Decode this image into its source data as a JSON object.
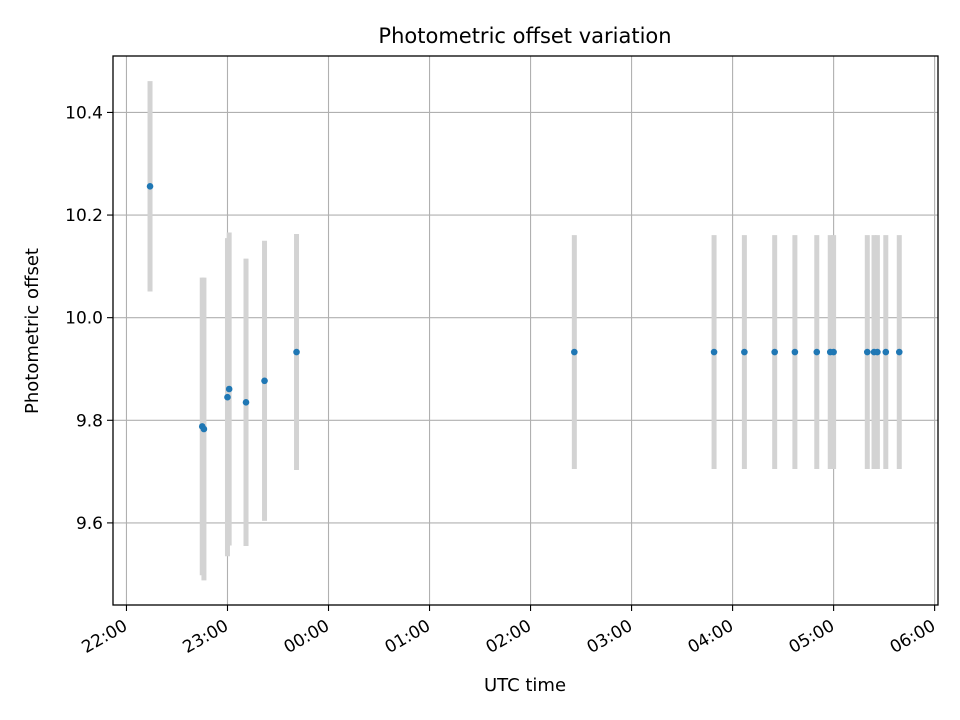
{
  "chart_data": {
    "type": "scatter",
    "title": "Photometric offset variation",
    "xlabel": "UTC time",
    "ylabel": "Photometric offset",
    "x_ticks": [
      "22:00",
      "23:00",
      "00:00",
      "01:00",
      "02:00",
      "03:00",
      "04:00",
      "05:00",
      "06:00"
    ],
    "y_ticks": [
      "9.6",
      "9.8",
      "10.0",
      "10.2",
      "10.4"
    ],
    "xlim": [
      "21:52",
      "06:00"
    ],
    "ylim": [
      9.44,
      10.51
    ],
    "grid": true,
    "point_color": "#1f77b4",
    "errorbar_color": "#d3d3d3",
    "points": [
      {
        "t": "22:14",
        "y": 10.256,
        "err": 0.205
      },
      {
        "t": "22:45",
        "y": 9.788,
        "err": 0.29
      },
      {
        "t": "22:46",
        "y": 9.783,
        "err": 0.295
      },
      {
        "t": "23:00",
        "y": 9.845,
        "err": 0.31
      },
      {
        "t": "23:01",
        "y": 9.861,
        "err": 0.305
      },
      {
        "t": "23:11",
        "y": 9.835,
        "err": 0.28
      },
      {
        "t": "23:22",
        "y": 9.877,
        "err": 0.273
      },
      {
        "t": "23:41",
        "y": 9.933,
        "err": 0.23
      },
      {
        "t": "02:26",
        "y": 9.933,
        "err": 0.228
      },
      {
        "t": "03:49",
        "y": 9.933,
        "err": 0.228
      },
      {
        "t": "04:07",
        "y": 9.933,
        "err": 0.228
      },
      {
        "t": "04:25",
        "y": 9.933,
        "err": 0.228
      },
      {
        "t": "04:37",
        "y": 9.933,
        "err": 0.228
      },
      {
        "t": "04:50",
        "y": 9.933,
        "err": 0.228
      },
      {
        "t": "04:58",
        "y": 9.933,
        "err": 0.228
      },
      {
        "t": "05:00",
        "y": 9.933,
        "err": 0.228
      },
      {
        "t": "05:20",
        "y": 9.933,
        "err": 0.228
      },
      {
        "t": "05:24",
        "y": 9.933,
        "err": 0.228
      },
      {
        "t": "05:26",
        "y": 9.933,
        "err": 0.228
      },
      {
        "t": "05:31",
        "y": 9.933,
        "err": 0.228
      },
      {
        "t": "05:39",
        "y": 9.933,
        "err": 0.228
      }
    ]
  }
}
